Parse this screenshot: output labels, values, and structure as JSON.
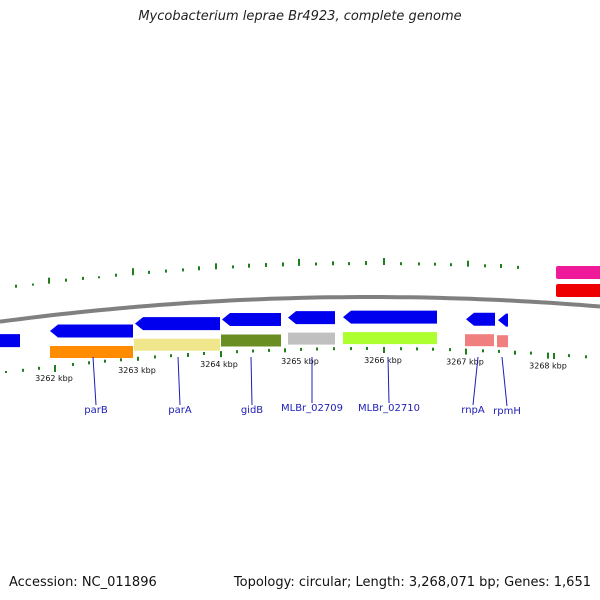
{
  "title": "Mycobacterium leprae Br4923, complete genome",
  "footer": {
    "accession": "Accession: NC_011896",
    "summary": "Topology: circular; Length: 3,268,071 bp; Genes: 1,651"
  },
  "colors": {
    "backbone": "#808080",
    "gene_arrow": "#0000ee",
    "gene_label": "#1d1db8",
    "gc_tick": "#1f7f1f",
    "track_pink": "#ee1a9a",
    "track_red": "#ee0000"
  },
  "scale_labels": [
    "3262 kbp",
    "3263 kbp",
    "3264 kbp",
    "3265 kbp",
    "3266 kbp",
    "3267 kbp",
    "3268 kbp"
  ],
  "genes": [
    {
      "name": "parB",
      "cog_color": "#ff8c00"
    },
    {
      "name": "parA",
      "cog_color": "#f0e68c"
    },
    {
      "name": "gidB",
      "cog_color": "#6b8e23"
    },
    {
      "name": "MLBr_02709",
      "cog_color": "#c0c0c0"
    },
    {
      "name": "MLBr_02710",
      "cog_color": "#adff2f"
    },
    {
      "name": "rnpA",
      "cog_color": "#f08080"
    },
    {
      "name": "rpmH",
      "cog_color": "#f08080"
    }
  ]
}
